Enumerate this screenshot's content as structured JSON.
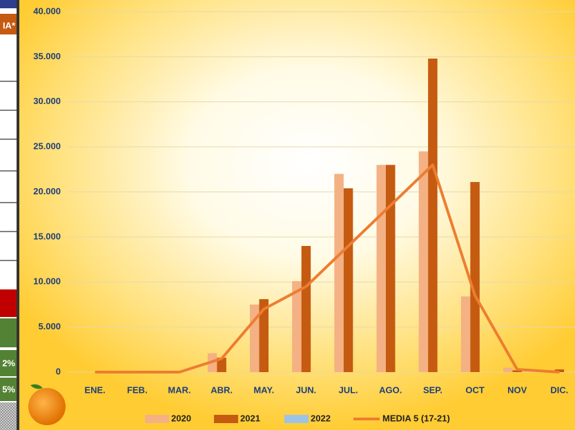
{
  "side_table": {
    "cells": [
      "IA*",
      "2%",
      "5%"
    ]
  },
  "chart_data": {
    "type": "bar",
    "categories": [
      "ENE.",
      "FEB.",
      "MAR.",
      "ABR.",
      "MAY.",
      "JUN.",
      "JUL.",
      "AGO.",
      "SEP.",
      "OCT",
      "NOV",
      "DIC."
    ],
    "series": [
      {
        "name": "2020",
        "color": "#f4b183",
        "values": [
          0,
          0,
          0,
          2100,
          7500,
          10100,
          22000,
          23000,
          24500,
          8400,
          500,
          0
        ]
      },
      {
        "name": "2021",
        "color": "#c55a11",
        "values": [
          0,
          0,
          0,
          1600,
          8100,
          14000,
          20400,
          23000,
          34800,
          21100,
          200,
          300
        ]
      },
      {
        "name": "2022",
        "color": "#9dc3e6",
        "values": [
          null,
          null,
          null,
          null,
          null,
          null,
          null,
          null,
          null,
          null,
          null,
          null
        ]
      },
      {
        "name": "MEDIA 5 (17-21)",
        "color": "#ed7d31",
        "type": "line",
        "values": [
          0,
          0,
          0,
          1500,
          7000,
          9500,
          14000,
          18500,
          23000,
          8500,
          300,
          0
        ]
      }
    ],
    "ylim": [
      0,
      40000
    ],
    "yticks": [
      0,
      {
        "value": 5000,
        "label": "5.000"
      },
      {
        "value": 10000,
        "label": "10.000"
      },
      {
        "value": 15000,
        "label": "15.000"
      },
      {
        "value": 20000,
        "label": "20.000"
      },
      {
        "value": 25000,
        "label": "25.000"
      },
      {
        "value": 30000,
        "label": "30.000"
      },
      {
        "value": 35000,
        "label": "35.000"
      },
      {
        "value": 40000,
        "label": "40.000"
      }
    ],
    "grid": true,
    "legend": "bottom"
  }
}
